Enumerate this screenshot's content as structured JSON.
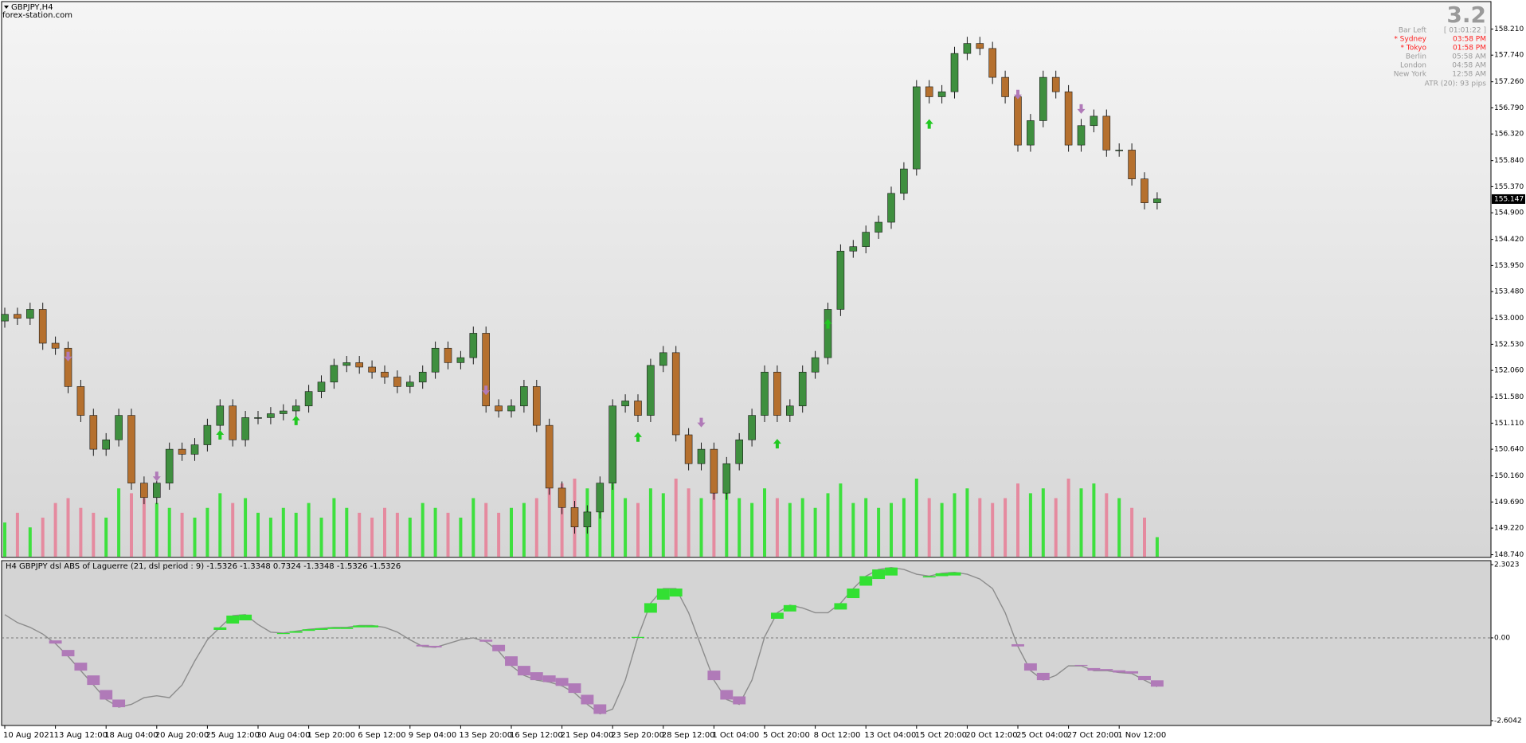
{
  "header": {
    "symbol": "GBPJPY,H4",
    "source": "forex-station.com"
  },
  "info": {
    "version": "3.2",
    "rows": [
      {
        "label": "Bar Left",
        "time": "[ 01:01:22 ]",
        "color": "#9a9a9a"
      },
      {
        "label": "* Sydney",
        "time": "03:58 PM",
        "color": "#ff2020"
      },
      {
        "label": "* Tokyo",
        "time": "01:58 PM",
        "color": "#ff2020"
      },
      {
        "label": "Berlin",
        "time": "05:58 AM",
        "color": "#9a9a9a"
      },
      {
        "label": "London",
        "time": "04:58 AM",
        "color": "#9a9a9a"
      },
      {
        "label": "New York",
        "time": "12:58 AM",
        "color": "#9a9a9a"
      }
    ],
    "atr": "ATR (20): 93 pips"
  },
  "chart_data": [
    {
      "type": "candlestick",
      "categories": [
        "10 Aug 2021",
        null,
        null,
        null,
        "13 Aug 12:00",
        null,
        null,
        null,
        "18 Aug 04:00",
        null,
        null,
        null,
        "20 Aug 20:00",
        null,
        null,
        null,
        "25 Aug 12:00",
        null,
        null,
        null,
        "30 Aug 04:00",
        null,
        null,
        null,
        "1 Sep 20:00",
        null,
        null,
        null,
        "6 Sep 12:00",
        null,
        null,
        null,
        "9 Sep 04:00",
        null,
        null,
        null,
        "13 Sep 20:00",
        null,
        null,
        null,
        "16 Sep 12:00",
        null,
        null,
        null,
        "21 Sep 04:00",
        null,
        null,
        null,
        "23 Sep 20:00",
        null,
        null,
        null,
        "28 Sep 12:00",
        null,
        null,
        null,
        "1 Oct 04:00",
        null,
        null,
        null,
        "5 Oct 20:00",
        null,
        null,
        null,
        "8 Oct 12:00",
        null,
        null,
        null,
        "13 Oct 04:00",
        null,
        null,
        null,
        "15 Oct 20:00",
        null,
        null,
        null,
        "20 Oct 12:00",
        null,
        null,
        null,
        "25 Oct 04:00",
        null,
        null,
        null,
        "27 Oct 20:00",
        null,
        null,
        null,
        "1 Nov 12:00",
        null,
        null,
        null
      ],
      "open": [
        152.95,
        153.07,
        153.0,
        153.16,
        152.55,
        152.46,
        151.77,
        151.25,
        150.64,
        150.81,
        151.25,
        150.03,
        149.77,
        150.03,
        150.64,
        150.55,
        150.72,
        151.07,
        151.42,
        150.81,
        151.21,
        151.21,
        151.28,
        151.33,
        151.42,
        151.68,
        151.85,
        152.15,
        152.2,
        152.12,
        152.03,
        151.94,
        151.77,
        151.85,
        152.03,
        152.46,
        152.2,
        152.29,
        152.73,
        151.42,
        151.33,
        151.42,
        151.77,
        151.07,
        149.94,
        149.59,
        149.24,
        149.51,
        150.03,
        151.42,
        151.51,
        151.25,
        152.15,
        152.38,
        150.9,
        150.38,
        150.64,
        149.85,
        150.38,
        150.81,
        151.25,
        152.03,
        151.25,
        151.42,
        152.03,
        152.29,
        153.16,
        154.21,
        154.29,
        154.55,
        154.73,
        155.25,
        155.69,
        157.17,
        156.99,
        157.08,
        157.77,
        157.95,
        157.86,
        157.34,
        156.99,
        156.12,
        156.56,
        157.34,
        157.08,
        156.12,
        156.47,
        156.64,
        156.03,
        156.03,
        155.51,
        155.08
      ],
      "high": [
        153.19,
        153.19,
        153.28,
        153.28,
        152.67,
        152.58,
        151.89,
        151.37,
        150.93,
        151.37,
        151.37,
        150.15,
        150.15,
        150.76,
        150.76,
        150.84,
        151.19,
        151.54,
        151.54,
        151.33,
        151.33,
        151.4,
        151.45,
        151.54,
        151.8,
        151.97,
        152.27,
        152.32,
        152.32,
        152.24,
        152.15,
        152.06,
        151.97,
        152.15,
        152.58,
        152.58,
        152.41,
        152.85,
        152.85,
        151.54,
        151.54,
        151.89,
        151.89,
        151.19,
        150.06,
        149.71,
        149.63,
        150.15,
        151.54,
        151.63,
        151.63,
        152.27,
        152.5,
        152.5,
        151.02,
        150.76,
        150.76,
        150.5,
        150.93,
        151.37,
        152.15,
        152.15,
        151.54,
        152.15,
        152.41,
        153.28,
        154.33,
        154.41,
        154.67,
        154.85,
        155.37,
        155.81,
        157.29,
        157.29,
        157.2,
        157.89,
        158.07,
        158.07,
        157.98,
        157.46,
        157.11,
        156.68,
        157.46,
        157.46,
        157.2,
        156.59,
        156.76,
        156.76,
        156.15,
        156.15,
        155.63,
        155.27
      ],
      "low": [
        152.83,
        152.88,
        152.88,
        152.43,
        152.34,
        151.65,
        151.13,
        150.52,
        150.52,
        150.69,
        149.91,
        149.65,
        149.65,
        149.91,
        150.43,
        150.43,
        150.6,
        150.95,
        150.69,
        150.69,
        151.09,
        151.09,
        151.16,
        151.21,
        151.3,
        151.56,
        151.73,
        152.03,
        152.0,
        151.91,
        151.82,
        151.65,
        151.65,
        151.73,
        151.91,
        152.08,
        152.08,
        152.17,
        151.3,
        151.21,
        151.21,
        151.3,
        150.95,
        149.82,
        149.47,
        149.12,
        149.12,
        149.39,
        149.91,
        151.3,
        151.13,
        151.13,
        152.03,
        150.78,
        150.26,
        150.26,
        149.73,
        149.73,
        150.26,
        150.69,
        151.13,
        151.13,
        151.13,
        151.3,
        151.91,
        152.17,
        153.04,
        154.09,
        154.17,
        154.43,
        154.61,
        155.13,
        155.57,
        156.87,
        156.87,
        156.96,
        157.65,
        157.74,
        157.22,
        156.87,
        156.0,
        156.0,
        156.44,
        156.96,
        156.0,
        156.0,
        156.35,
        155.91,
        155.91,
        155.39,
        154.96,
        154.96
      ],
      "close": [
        153.07,
        153.0,
        153.16,
        152.55,
        152.46,
        151.77,
        151.25,
        150.64,
        150.81,
        151.25,
        150.03,
        149.77,
        150.03,
        150.64,
        150.55,
        150.72,
        151.07,
        151.42,
        150.81,
        151.21,
        151.21,
        151.28,
        151.33,
        151.42,
        151.68,
        151.85,
        152.15,
        152.2,
        152.12,
        152.03,
        151.94,
        151.77,
        151.85,
        152.03,
        152.46,
        152.2,
        152.29,
        152.73,
        151.42,
        151.33,
        151.42,
        151.77,
        151.07,
        149.94,
        149.59,
        149.24,
        149.51,
        150.03,
        151.42,
        151.51,
        151.25,
        152.15,
        152.38,
        150.9,
        150.38,
        150.64,
        149.85,
        150.38,
        150.81,
        151.25,
        152.03,
        151.25,
        151.42,
        152.03,
        152.29,
        153.16,
        154.21,
        154.29,
        154.55,
        154.73,
        155.25,
        155.69,
        157.17,
        156.99,
        157.08,
        157.77,
        157.95,
        157.86,
        157.34,
        156.99,
        156.12,
        156.56,
        157.34,
        157.08,
        156.12,
        156.47,
        156.64,
        156.03,
        156.03,
        155.51,
        155.08,
        155.15
      ],
      "volumes": [
        35,
        45,
        30,
        40,
        55,
        60,
        50,
        45,
        40,
        70,
        65,
        60,
        55,
        50,
        45,
        40,
        50,
        65,
        55,
        60,
        45,
        40,
        50,
        45,
        55,
        40,
        60,
        50,
        45,
        40,
        50,
        45,
        40,
        55,
        50,
        45,
        40,
        60,
        55,
        45,
        50,
        55,
        60,
        70,
        75,
        80,
        70,
        65,
        75,
        60,
        55,
        70,
        65,
        80,
        70,
        60,
        75,
        65,
        60,
        55,
        70,
        60,
        55,
        60,
        50,
        65,
        75,
        55,
        60,
        50,
        55,
        60,
        80,
        60,
        55,
        65,
        70,
        60,
        55,
        60,
        75,
        65,
        70,
        60,
        80,
        70,
        75,
        65,
        60,
        50,
        40,
        20
      ],
      "up_arrows": [
        null,
        null,
        null,
        null,
        null,
        null,
        null,
        null,
        null,
        null,
        null,
        null,
        null,
        null,
        null,
        null,
        null,
        150.9,
        null,
        null,
        null,
        null,
        null,
        151.16,
        null,
        null,
        null,
        null,
        null,
        null,
        null,
        null,
        null,
        null,
        null,
        null,
        null,
        null,
        null,
        null,
        null,
        null,
        null,
        null,
        null,
        null,
        null,
        null,
        null,
        null,
        150.86,
        null,
        null,
        null,
        null,
        null,
        null,
        null,
        null,
        null,
        null,
        150.74,
        null,
        null,
        null,
        152.9,
        null,
        null,
        null,
        null,
        null,
        null,
        null,
        156.5,
        null,
        null,
        null,
        null,
        null,
        null,
        null,
        null,
        null,
        null,
        null,
        null,
        null,
        null,
        null,
        null,
        null,
        null
      ],
      "down_arrows": [
        null,
        null,
        null,
        null,
        null,
        152.31,
        null,
        null,
        null,
        null,
        null,
        null,
        150.15,
        null,
        null,
        null,
        null,
        null,
        null,
        null,
        null,
        null,
        null,
        null,
        null,
        null,
        null,
        null,
        null,
        null,
        null,
        null,
        null,
        null,
        null,
        null,
        null,
        null,
        151.7,
        null,
        null,
        null,
        null,
        null,
        null,
        null,
        null,
        null,
        null,
        null,
        null,
        null,
        null,
        null,
        null,
        151.12,
        null,
        null,
        null,
        null,
        null,
        null,
        null,
        null,
        null,
        null,
        null,
        null,
        null,
        null,
        null,
        null,
        null,
        null,
        null,
        null,
        null,
        null,
        null,
        null,
        157.03,
        null,
        null,
        null,
        null,
        156.77,
        null,
        null,
        null,
        null,
        null,
        null
      ],
      "ylim": [
        148.705,
        158.68
      ],
      "yticks": [
        {
          "value": 158.21,
          "label": "158.210"
        },
        {
          "value": 157.74,
          "label": "157.740"
        },
        {
          "value": 157.26,
          "label": "157.260"
        },
        {
          "value": 156.79,
          "label": "156.790"
        },
        {
          "value": 156.32,
          "label": "156.320"
        },
        {
          "value": 155.84,
          "label": "155.840"
        },
        {
          "value": 155.37,
          "label": "155.370"
        },
        {
          "value": 154.9,
          "label": "154.900"
        },
        {
          "value": 154.42,
          "label": "154.420"
        },
        {
          "value": 153.95,
          "label": "153.950"
        },
        {
          "value": 153.48,
          "label": "153.480"
        },
        {
          "value": 153.0,
          "label": "153.000"
        },
        {
          "value": 152.53,
          "label": "152.530"
        },
        {
          "value": 152.06,
          "label": "152.060"
        },
        {
          "value": 151.58,
          "label": "151.580"
        },
        {
          "value": 151.11,
          "label": "151.110"
        },
        {
          "value": 150.64,
          "label": "150.640"
        },
        {
          "value": 150.16,
          "label": "150.160"
        },
        {
          "value": 149.69,
          "label": "149.690"
        },
        {
          "value": 149.22,
          "label": "149.220"
        },
        {
          "value": 148.74,
          "label": "148.740"
        }
      ],
      "last_price": 155.147,
      "colors": {
        "bull": "#3f8f3f",
        "bear": "#b5702e",
        "wick": "#1a1a1a",
        "volume_up": "#3ee03e",
        "volume_down": "#e58a9f",
        "arrow_up": "#22c822",
        "arrow_down": "#b07ab8"
      }
    },
    {
      "type": "dsl",
      "title": "H4 GBPJPY  dsl ABS of Laguerre (21, dsl period : 9) -1.5326 -1.3348 0.7324 -1.3348 -1.5326 -1.5326",
      "values": [
        0.73,
        0.48,
        0.33,
        0.12,
        -0.18,
        -0.58,
        -1.03,
        -1.48,
        -1.94,
        -2.18,
        -2.09,
        -1.88,
        -1.82,
        -1.88,
        -1.48,
        -0.73,
        -0.06,
        0.33,
        0.7,
        0.73,
        0.42,
        0.18,
        0.15,
        0.21,
        0.27,
        0.3,
        0.33,
        0.33,
        0.39,
        0.39,
        0.33,
        0.18,
        -0.06,
        -0.27,
        -0.3,
        -0.18,
        -0.06,
        0,
        -0.12,
        -0.42,
        -0.88,
        -1.18,
        -1.33,
        -1.39,
        -1.51,
        -1.73,
        -2.09,
        -2.39,
        -2.24,
        -1.33,
        0.03,
        1.09,
        1.55,
        1.55,
        0.79,
        -0.27,
        -1.33,
        -1.94,
        -2.09,
        -1.33,
        0.03,
        0.79,
        1.03,
        0.94,
        0.79,
        0.79,
        1.09,
        1.55,
        1.94,
        2.15,
        2.21,
        2.15,
        2.0,
        1.94,
        2.03,
        2.06,
        2.0,
        1.85,
        1.55,
        0.79,
        -0.27,
        -1.03,
        -1.33,
        -1.18,
        -0.88,
        -0.88,
        -1.03,
        -1.03,
        -1.09,
        -1.12,
        -1.33,
        -1.5326
      ],
      "levels": [
        0.73,
        0.48,
        0.33,
        0.12,
        -0.08,
        -0.38,
        -0.78,
        -1.18,
        -1.64,
        -1.94,
        -2.09,
        -1.88,
        -1.82,
        -1.88,
        -1.48,
        -0.73,
        -0.06,
        0.25,
        0.45,
        0.55,
        0.42,
        0.18,
        0.12,
        0.16,
        0.22,
        0.25,
        0.28,
        0.28,
        0.33,
        0.33,
        0.33,
        0.18,
        -0.06,
        -0.22,
        -0.25,
        -0.18,
        -0.06,
        0,
        -0.06,
        -0.22,
        -0.58,
        -0.88,
        -1.08,
        -1.18,
        -1.26,
        -1.43,
        -1.79,
        -2.09,
        -2.24,
        -1.33,
        0,
        0.79,
        1.2,
        1.3,
        0.79,
        -0.27,
        -1.03,
        -1.64,
        -1.84,
        -1.33,
        0.03,
        0.6,
        0.83,
        0.94,
        0.79,
        0.79,
        0.89,
        1.25,
        1.64,
        1.85,
        1.96,
        2.15,
        2.0,
        1.9,
        1.94,
        1.96,
        2.0,
        1.85,
        1.55,
        0.79,
        -0.2,
        -0.8,
        -1.1,
        -1.18,
        -0.88,
        -0.85,
        -0.95,
        -0.98,
        -1.02,
        -1.05,
        -1.2,
        -1.3348
      ],
      "ylim": [
        -2.6042,
        2.3023
      ],
      "yticks": [
        2.3023,
        {
          "value": 0,
          "label": "0.00"
        },
        -2.6042
      ],
      "colors": {
        "line": "#8c8c8c",
        "up": "#33e033",
        "down": "#b07ab8",
        "zero": "#777777"
      }
    }
  ]
}
